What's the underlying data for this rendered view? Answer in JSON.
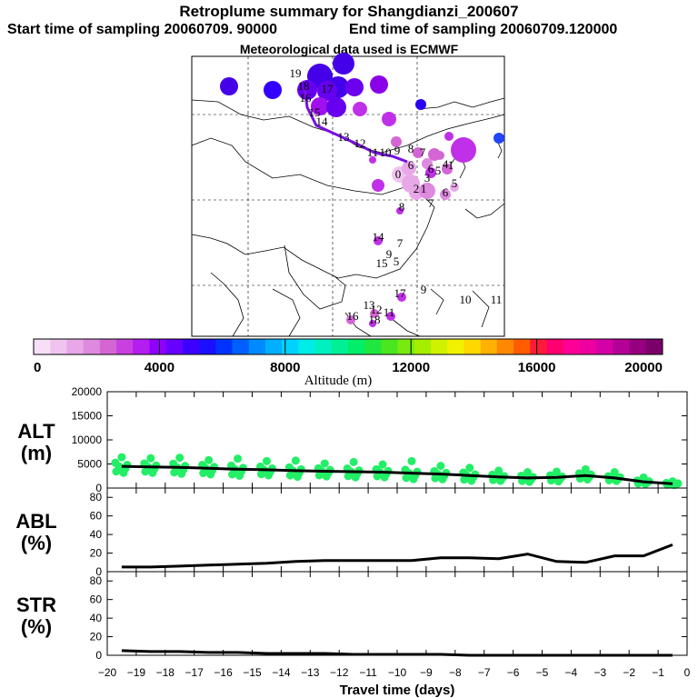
{
  "header": {
    "title": "Retroplume summary for Shangdianzi_200607",
    "start": "Start time of sampling 20060709. 90000",
    "end": "End time of sampling 20060709.120000",
    "met": "Meteorological data used is ECMWF"
  },
  "colorbar": {
    "ticks": [
      "0",
      "4000",
      "8000",
      "12000",
      "16000",
      "20000"
    ],
    "label": "Altitude (m)",
    "colors": [
      "#f7dff7",
      "#f0c4f0",
      "#e8a8e8",
      "#de8ade",
      "#d466d4",
      "#c840e0",
      "#b51cf0",
      "#9000ff",
      "#6600ff",
      "#3d00ff",
      "#1a10ff",
      "#0033ff",
      "#0060ff",
      "#008aff",
      "#00b0ff",
      "#00d2ff",
      "#00ece6",
      "#00f0c0",
      "#00f096",
      "#00ee6a",
      "#20e640",
      "#4ae620",
      "#78ea10",
      "#a6ee00",
      "#d0f200",
      "#f2f200",
      "#ffd800",
      "#ffb000",
      "#ff8800",
      "#ff5c00",
      "#ff1a3a",
      "#ff0070",
      "#ff0096",
      "#ee00a0",
      "#d400a8",
      "#b40096",
      "#960080",
      "#7a006a"
    ]
  },
  "map": {
    "plumes": [
      {
        "label": "19",
        "color": "#4400e8"
      },
      {
        "label": "18",
        "color": "#4400e8"
      },
      {
        "label": "14",
        "color": "#4400e8"
      },
      {
        "label": "8",
        "color": "#4400e8"
      },
      {
        "label": "10",
        "color": "#3300ff"
      },
      {
        "label": "19",
        "color": "#6600ee"
      },
      {
        "label": "17",
        "color": "#6600ee"
      },
      {
        "label": "15",
        "color": "#6a00ee"
      },
      {
        "label": "12",
        "color": "#8a00e8"
      },
      {
        "label": "9",
        "color": "#a010ee"
      },
      {
        "label": "16",
        "color": "#6600ee"
      },
      {
        "label": "7",
        "color": "#c030e8"
      },
      {
        "label": "6",
        "color": "#c030e8"
      },
      {
        "label": "3",
        "color": "#2a00f0"
      },
      {
        "label": "8",
        "color": "#2244ff"
      },
      {
        "label": "10",
        "color": "#c030e8"
      },
      {
        "label": "5",
        "color": "#c030e8"
      },
      {
        "label": "6",
        "color": "#d466d4"
      },
      {
        "label": "13",
        "color": "#c030e8"
      },
      {
        "label": "0",
        "color": "#f0c4f0"
      },
      {
        "label": "1",
        "color": "#e8a8e8"
      },
      {
        "label": "2",
        "color": "#e8a8e8"
      },
      {
        "label": "11",
        "color": "#de8ade"
      },
      {
        "label": "6",
        "color": "#de8ade"
      },
      {
        "label": "4",
        "color": "#d466d4"
      },
      {
        "label": "3",
        "color": "#d466d4"
      },
      {
        "label": "2",
        "color": "#c030e8"
      },
      {
        "label": "9",
        "color": "#d466d4"
      },
      {
        "label": "1",
        "color": "#de8ade"
      },
      {
        "label": "1",
        "color": "#e8a8e8"
      },
      {
        "label": "5",
        "color": "#e8a8e8"
      },
      {
        "label": "4",
        "color": "#c030e8"
      },
      {
        "label": "14",
        "color": "#c030e8"
      },
      {
        "label": "8",
        "color": "#c030e8"
      },
      {
        "label": "17",
        "color": "#c030e8"
      },
      {
        "label": "13",
        "color": "#d466d4"
      },
      {
        "label": "12",
        "color": "#d466d4"
      },
      {
        "label": "11",
        "color": "#c030e8"
      },
      {
        "label": "18",
        "color": "#c030e8"
      },
      {
        "label": "16",
        "color": "#d466d4"
      }
    ],
    "labels": [
      "19",
      "18",
      "17",
      "16",
      "15",
      "14",
      "13",
      "12",
      "11",
      "10",
      "9",
      "8",
      "7",
      "6",
      "5",
      "4",
      "3",
      "2",
      "1",
      "0",
      "8",
      "7",
      "6",
      "5",
      "14",
      "7",
      "9",
      "15",
      "5",
      "17",
      "9",
      "10",
      "11",
      "13",
      "12",
      "11",
      "18",
      "16",
      "1",
      "6"
    ]
  },
  "chart_data": [
    {
      "type": "scatter",
      "name": "ALT",
      "ylabel": "ALT\n(m)",
      "ylabel_line1": "ALT",
      "ylabel_line2": "(m)",
      "ylim": [
        0,
        20000
      ],
      "yticks": [
        "0",
        "5000",
        "10000",
        "15000",
        "20000"
      ],
      "yticks_values": [
        0,
        5000,
        10000,
        15000,
        20000
      ],
      "line_x": [
        -19.5,
        -18.5,
        -17.5,
        -16.5,
        -15.5,
        -14.5,
        -13.5,
        -12.5,
        -11.5,
        -10.5,
        -9.5,
        -8.5,
        -7.5,
        -6.5,
        -5.5,
        -4.5,
        -3.5,
        -2.5,
        -1.5,
        -0.5
      ],
      "line_y": [
        4500,
        4400,
        4300,
        4100,
        3900,
        3800,
        3600,
        3500,
        3400,
        3300,
        3100,
        2900,
        2600,
        2300,
        2100,
        2200,
        2600,
        2100,
        1300,
        900
      ],
      "points_color": "#22ee66",
      "points_spread": [
        1500,
        1400,
        1500,
        1400,
        1500,
        1300,
        1400,
        1200,
        1300,
        1200,
        1400,
        1200,
        1200,
        900,
        900,
        900,
        900,
        700,
        500,
        300
      ],
      "points_upper": [
        6400,
        6200,
        6300,
        5800,
        6100,
        5600,
        5700,
        5100,
        5400,
        4900,
        5600,
        4600,
        4200,
        3600,
        3300,
        3400,
        3900,
        3300,
        2200,
        1400
      ]
    },
    {
      "type": "line",
      "name": "ABL",
      "ylabel_line1": "ABL",
      "ylabel_line2": "(%)",
      "ylim": [
        0,
        90
      ],
      "yticks": [
        "0",
        "20",
        "40",
        "60",
        "80"
      ],
      "yticks_values": [
        0,
        20,
        40,
        60,
        80
      ],
      "x": [
        -19.5,
        -18.5,
        -17.5,
        -16.5,
        -15.5,
        -14.5,
        -13.5,
        -12.5,
        -11.5,
        -10.5,
        -9.5,
        -8.5,
        -7.5,
        -6.5,
        -5.5,
        -4.5,
        -3.5,
        -2.5,
        -1.5,
        -0.5
      ],
      "y": [
        5,
        5,
        6,
        7,
        8,
        9,
        11,
        12,
        12,
        12,
        12,
        15,
        15,
        14,
        19,
        11,
        10,
        17,
        17,
        29
      ]
    },
    {
      "type": "line",
      "name": "STR",
      "ylabel_line1": "STR",
      "ylabel_line2": "(%)",
      "ylim": [
        0,
        90
      ],
      "yticks": [
        "0",
        "20",
        "40",
        "60",
        "80"
      ],
      "yticks_values": [
        0,
        20,
        40,
        60,
        80
      ],
      "x": [
        -19.5,
        -18.5,
        -17.5,
        -16.5,
        -15.5,
        -14.5,
        -13.5,
        -12.5,
        -11.5,
        -10.5,
        -9.5,
        -8.5,
        -7.5,
        -6.5,
        -5.5,
        -4.5,
        -3.5,
        -2.5,
        -1.5,
        -0.5
      ],
      "y": [
        5,
        4,
        4,
        3,
        3,
        2,
        2,
        2,
        1,
        1,
        1,
        1,
        0,
        0,
        0,
        0,
        0,
        0,
        0,
        0
      ]
    }
  ],
  "xaxis": {
    "label": "Travel time (days)",
    "xlim": [
      -20,
      0
    ],
    "ticks": [
      "−20",
      "−19",
      "−18",
      "−17",
      "−16",
      "−15",
      "−14",
      "−13",
      "−12",
      "−11",
      "−10",
      "−9",
      "−8",
      "−7",
      "−6",
      "−5",
      "−4",
      "−3",
      "−2",
      "−1",
      "0"
    ],
    "tick_values": [
      -20,
      -19,
      -18,
      -17,
      -16,
      -15,
      -14,
      -13,
      -12,
      -11,
      -10,
      -9,
      -8,
      -7,
      -6,
      -5,
      -4,
      -3,
      -2,
      -1,
      0
    ]
  }
}
